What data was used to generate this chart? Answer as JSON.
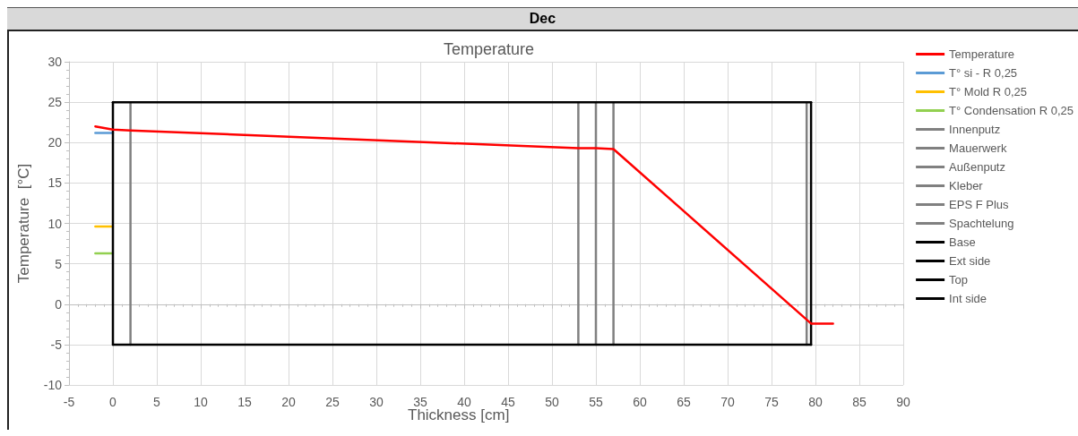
{
  "chart_data": {
    "type": "line",
    "title": "Temperature",
    "subtitle": "Dec",
    "xlabel": "Thickness [cm]",
    "ylabel": "Temperature  [°C]",
    "xlim": [
      -5,
      90
    ],
    "xticks": [
      -5,
      0,
      5,
      10,
      15,
      20,
      25,
      30,
      35,
      40,
      45,
      50,
      55,
      60,
      65,
      70,
      75,
      80,
      85,
      90
    ],
    "ylim": [
      -10,
      30
    ],
    "yticks": [
      -10,
      -5,
      0,
      5,
      10,
      15,
      20,
      25,
      30
    ],
    "grid": true,
    "legend": "right",
    "marker": "none",
    "line_style": "solid",
    "series": [
      {
        "name": "Temperature",
        "color": "#ff0000",
        "x": [
          -2,
          0,
          2,
          53,
          55,
          57,
          79.5,
          82
        ],
        "values": [
          22,
          21.6,
          21.5,
          19.3,
          19.3,
          19.2,
          -2.4,
          -2.4
        ]
      },
      {
        "name": "T° si - R 0,25",
        "color": "#5b9bd5",
        "x": [
          -2,
          0
        ],
        "values": [
          21.2,
          21.2
        ]
      },
      {
        "name": "T° Mold R 0,25",
        "color": "#ffc000",
        "x": [
          -2,
          0
        ],
        "values": [
          9.6,
          9.6
        ]
      },
      {
        "name": "T° Condensation R 0,25",
        "color": "#92d050",
        "x": [
          -2,
          0
        ],
        "values": [
          6.3,
          6.3
        ]
      },
      {
        "name": "Innenputz",
        "color": "#808080",
        "x": [
          2,
          2
        ],
        "values": [
          -5,
          25
        ]
      },
      {
        "name": "Mauerwerk",
        "color": "#808080",
        "x": [
          53,
          53
        ],
        "values": [
          -5,
          25
        ]
      },
      {
        "name": "Außenputz",
        "color": "#808080",
        "x": [
          55,
          55
        ],
        "values": [
          -5,
          25
        ]
      },
      {
        "name": "Kleber",
        "color": "#808080",
        "x": [
          57,
          57
        ],
        "values": [
          -5,
          25
        ]
      },
      {
        "name": "EPS F Plus",
        "color": "#808080",
        "x": [
          79,
          79
        ],
        "values": [
          -5,
          25
        ]
      },
      {
        "name": "Spachtelung",
        "color": "#808080",
        "x": [
          null,
          null
        ],
        "values": [
          null,
          null
        ]
      },
      {
        "name": "Base",
        "color": "#000000",
        "x": [
          0,
          79.5
        ],
        "values": [
          -5,
          -5
        ]
      },
      {
        "name": "Ext side",
        "color": "#000000",
        "x": [
          79.5,
          79.5
        ],
        "values": [
          -5,
          25
        ]
      },
      {
        "name": "Top",
        "color": "#000000",
        "x": [
          0,
          79.5
        ],
        "values": [
          25,
          25
        ]
      },
      {
        "name": "Int side",
        "color": "#000000",
        "x": [
          0,
          0
        ],
        "values": [
          -5,
          25
        ]
      }
    ]
  }
}
